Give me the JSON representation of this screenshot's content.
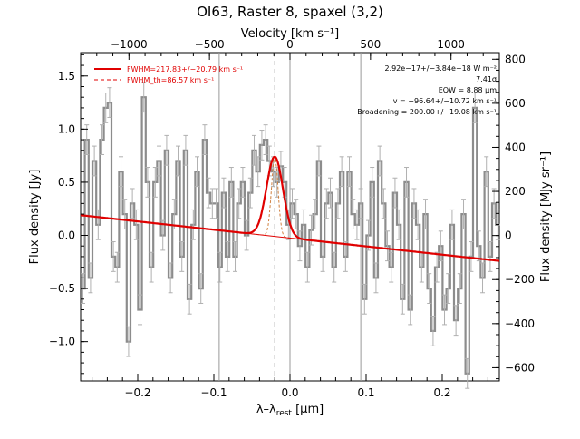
{
  "chart_data": {
    "type": "line",
    "title": "OI63, Raster 8, spaxel (3,2)",
    "xlabel_prefix": "λ–λ",
    "xlabel_sub": "rest",
    "xlabel_unit": " [μm]",
    "ylabel_left": "Flux density [Jy]",
    "ylabel_right": "Flux density [MJy sr⁻¹]",
    "top_axis_label": "Velocity [km s⁻¹]",
    "xlim": [
      -0.275,
      0.275
    ],
    "ylim": [
      -1.37,
      1.72
    ],
    "right_ylim": [
      -660,
      830
    ],
    "top_xlim": [
      -1300,
      1300
    ],
    "x_ticks": [
      -0.2,
      -0.1,
      0.0,
      0.1,
      0.2
    ],
    "x_tick_labels": [
      "−0.2",
      "−0.1",
      "0.0",
      "0.1",
      "0.2"
    ],
    "y_ticks": [
      -1.0,
      -0.5,
      0.0,
      0.5,
      1.0,
      1.5
    ],
    "y_tick_labels": [
      "−1.0",
      "−0.5",
      "0.0",
      "0.5",
      "1.0",
      "1.5"
    ],
    "top_ticks": [
      -1000,
      -500,
      0,
      500,
      1000
    ],
    "top_tick_labels": [
      "−1000",
      "−500",
      "0",
      "500",
      "1000"
    ],
    "right_ticks": [
      -600,
      -400,
      -200,
      0,
      200,
      400,
      600,
      800
    ],
    "right_tick_labels": [
      "−600",
      "−400",
      "−200",
      "0",
      "200",
      "400",
      "600",
      "800"
    ],
    "vertical_lines": [
      -0.093,
      0.0,
      0.093
    ],
    "dashed_line": -0.02,
    "legend": [
      {
        "label": "FWHM=217.83+/−20.79 km s⁻¹",
        "style": "solid",
        "color": "#e00000"
      },
      {
        "label": "FWHM_th=86.57 km s⁻¹",
        "style": "dashed",
        "color": "#e00000"
      }
    ],
    "annotations": [
      "2.92e−17+/−3.84e−18 W m⁻²",
      "7.41σ",
      "EQW = 8.88 μm",
      "v = −96.64+/−10.72 km s⁻¹",
      "Broadening = 200.00+/−19.08 km s⁻¹"
    ],
    "fit": {
      "baseline_start": [
        -0.275,
        0.19
      ],
      "baseline_end": [
        0.275,
        -0.24
      ],
      "peak_center": -0.02,
      "peak_amplitude": 0.75,
      "peak_sigma": 0.0108,
      "thermal_sigma": 0.0043
    },
    "series": [
      {
        "x": [
          -0.272,
          -0.267,
          -0.262,
          -0.257,
          -0.252,
          -0.247,
          -0.242,
          -0.237,
          -0.232,
          -0.227,
          -0.222,
          -0.217,
          -0.212,
          -0.207,
          -0.202,
          -0.197,
          -0.192,
          -0.187,
          -0.182,
          -0.177,
          -0.172,
          -0.167,
          -0.162,
          -0.157,
          -0.152,
          -0.147,
          -0.142,
          -0.137,
          -0.132,
          -0.127,
          -0.122,
          -0.117,
          -0.112,
          -0.107,
          -0.102,
          -0.097,
          -0.092,
          -0.087,
          -0.082,
          -0.077,
          -0.072,
          -0.067,
          -0.062,
          -0.057,
          -0.052,
          -0.047,
          -0.042,
          -0.037,
          -0.032,
          -0.027,
          -0.022,
          -0.017,
          -0.012,
          -0.007,
          -0.002,
          0.003,
          0.008,
          0.013,
          0.018,
          0.023,
          0.028,
          0.033,
          0.038,
          0.043,
          0.048,
          0.053,
          0.058,
          0.063,
          0.068,
          0.073,
          0.078,
          0.083,
          0.088,
          0.093,
          0.098,
          0.103,
          0.108,
          0.113,
          0.118,
          0.123,
          0.128,
          0.133,
          0.138,
          0.143,
          0.148,
          0.153,
          0.158,
          0.163,
          0.168,
          0.173,
          0.178,
          0.183,
          0.188,
          0.193,
          0.198,
          0.203,
          0.208,
          0.213,
          0.218,
          0.223,
          0.228,
          0.233,
          0.238,
          0.243,
          0.248,
          0.253,
          0.258,
          0.263,
          0.268,
          0.273
        ],
        "y": [
          -0.5,
          0.9,
          -0.4,
          0.7,
          0.1,
          0.9,
          1.2,
          1.25,
          -0.2,
          -0.3,
          0.6,
          0.2,
          -1.0,
          0.3,
          0.1,
          -0.7,
          1.3,
          0.5,
          -0.3,
          0.5,
          0.7,
          0.0,
          0.8,
          -0.4,
          0.2,
          0.7,
          -0.2,
          0.8,
          -0.6,
          0.1,
          0.6,
          -0.5,
          0.9,
          0.4,
          0.3,
          0.3,
          -0.3,
          0.4,
          -0.2,
          0.5,
          -0.2,
          0.3,
          0.5,
          0.0,
          0.4,
          0.8,
          0.6,
          0.85,
          0.9,
          0.7,
          0.6,
          0.5,
          0.65,
          0.5,
          0.1,
          0.3,
          0.2,
          -0.1,
          0.1,
          -0.3,
          0.05,
          0.2,
          0.7,
          -0.2,
          0.3,
          0.4,
          -0.3,
          0.3,
          0.6,
          -0.2,
          0.6,
          0.2,
          0.1,
          0.3,
          -0.6,
          0.0,
          0.5,
          -0.4,
          0.7,
          0.3,
          -0.1,
          -0.3,
          0.4,
          0.1,
          -0.6,
          0.5,
          -0.7,
          0.3,
          0.1,
          -0.3,
          0.2,
          -0.5,
          -0.9,
          -0.3,
          -0.1,
          -0.7,
          -0.5,
          0.1,
          -0.8,
          -0.5,
          0.2,
          -1.3,
          -0.2,
          1.2,
          -0.1,
          -0.4,
          0.6,
          -0.2,
          0.3,
          0.1
        ],
        "err": 0.14
      }
    ]
  }
}
